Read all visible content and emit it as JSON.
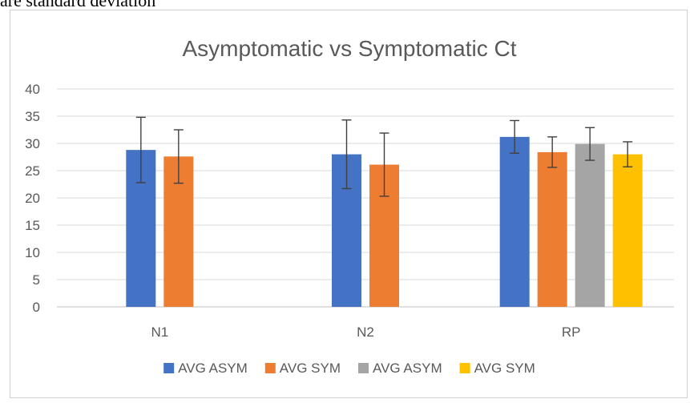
{
  "page": {
    "caption_fragment": "are standard deviation"
  },
  "chart_data": {
    "type": "bar",
    "title": "Asymptomatic vs Symptomatic Ct",
    "xlabel": "",
    "ylabel": "",
    "categories": [
      "N1",
      "N2",
      "RP"
    ],
    "ylim": [
      0,
      40
    ],
    "yticks": [
      0,
      5,
      10,
      15,
      20,
      25,
      30,
      35,
      40
    ],
    "grid": true,
    "legend_position": "bottom",
    "series": [
      {
        "name": "AVG ASYM",
        "color": "#4472C4",
        "values": [
          28.8,
          28.0,
          31.2
        ],
        "error": [
          6.0,
          6.3,
          3.0
        ]
      },
      {
        "name": "AVG SYM",
        "color": "#ED7D31",
        "values": [
          27.6,
          26.1,
          28.4
        ],
        "error": [
          4.9,
          5.8,
          2.8
        ]
      },
      {
        "name": "AVG ASYM",
        "color": "#A5A5A5",
        "values": [
          null,
          null,
          29.9
        ],
        "error": [
          null,
          null,
          3.0
        ]
      },
      {
        "name": "AVG SYM",
        "color": "#FFC000",
        "values": [
          null,
          null,
          28.0
        ],
        "error": [
          null,
          null,
          2.3
        ]
      }
    ]
  }
}
